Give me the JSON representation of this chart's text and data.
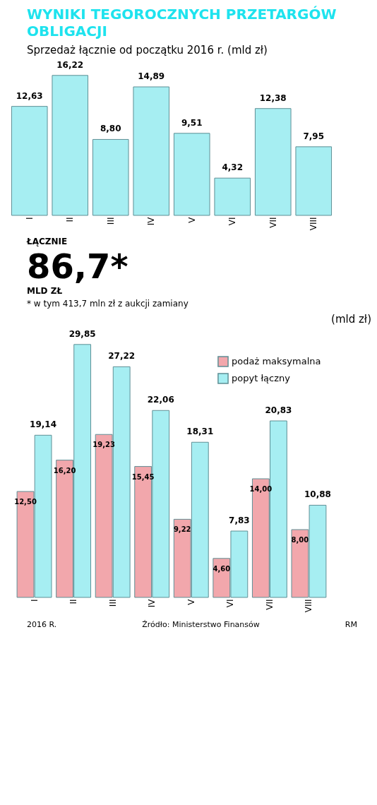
{
  "chart_data": [
    {
      "type": "bar",
      "title": "WYNIKI TEGOROCZNYCH PRZETARGÓW OBLIGACJI",
      "subtitle": "Sprzedaż łącznie od początku 2016 r. (mld zł)",
      "categories": [
        "I",
        "II",
        "III",
        "IV",
        "V",
        "VI",
        "VII",
        "VIII"
      ],
      "values": [
        12.63,
        16.22,
        8.8,
        14.89,
        9.51,
        4.32,
        12.38,
        7.95
      ],
      "value_labels": [
        "12,63",
        "16,22",
        "8,80",
        "14,89",
        "9,51",
        "4,32",
        "12,38",
        "7,95"
      ],
      "color": "#a6eef2",
      "annotations": [
        "ŁĄCZNIE",
        "86,7*",
        "MLD ZŁ",
        "* w tym 413,7 mln zł z aukcji zamiany"
      ]
    },
    {
      "type": "bar",
      "ylabel": "(mld zł)",
      "categories": [
        "I",
        "II",
        "III",
        "IV",
        "V",
        "VI",
        "VII",
        "VIII"
      ],
      "legend": "top right",
      "series": [
        {
          "name": "podaż maksymalna",
          "color": "#f2a7ac",
          "values": [
            12.5,
            16.2,
            19.23,
            15.45,
            9.22,
            4.6,
            14.0,
            8.0
          ],
          "value_labels": [
            "12,50",
            "16,20",
            "19,23",
            "15,45",
            "9,22",
            "4,60",
            "14,00",
            "8,00"
          ]
        },
        {
          "name": "popyt łączny",
          "color": "#a6eef2",
          "values": [
            19.14,
            29.85,
            27.22,
            22.06,
            18.31,
            7.83,
            20.83,
            10.88
          ],
          "value_labels": [
            "19,14",
            "29,85",
            "27,22",
            "22,06",
            "18,31",
            "7,83",
            "20,83",
            "10,88"
          ]
        }
      ],
      "annotations": [
        "2016 R.",
        "Źródło: Ministerstwo Finansów",
        "RM"
      ]
    }
  ]
}
